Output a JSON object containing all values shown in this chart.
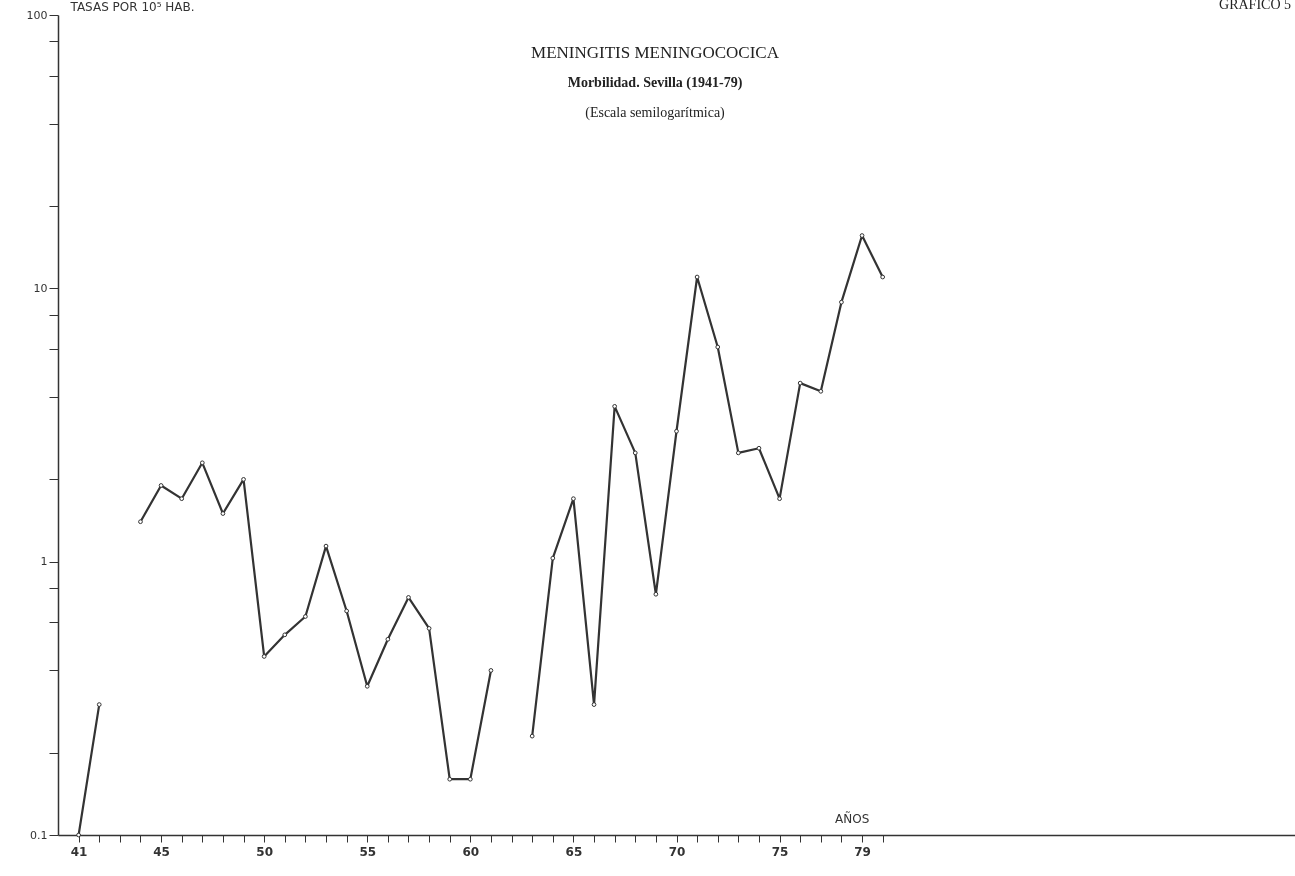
{
  "chart_data": {
    "type": "line",
    "title": "MENINGITIS MENINGOCOCICA",
    "subtitle": "Morbilidad. Sevilla (1941-79)",
    "annotations": [
      "(Escala semilogarítmica)",
      "GRAFICO 5"
    ],
    "xlabel": "AÑOS",
    "ylabel": "TASAS POR 10⁵ HAB.",
    "x": [
      41,
      42,
      43,
      44,
      45,
      46,
      47,
      48,
      49,
      50,
      51,
      52,
      53,
      54,
      55,
      56,
      57,
      58,
      59,
      60,
      61,
      62,
      63,
      64,
      65,
      66,
      67,
      68,
      69,
      70,
      71,
      72,
      73,
      74,
      75,
      76,
      77,
      78,
      79,
      80
    ],
    "series": [
      {
        "color": "#333333",
        "values": [
          0.1,
          0.3,
          null,
          1.4,
          1.9,
          1.7,
          2.3,
          1.5,
          2.0,
          0.45,
          0.54,
          0.63,
          1.14,
          0.66,
          0.35,
          0.52,
          0.74,
          0.57,
          0.16,
          0.16,
          0.4,
          null,
          0.23,
          1.03,
          1.7,
          0.3,
          3.7,
          2.5,
          0.76,
          3.0,
          11,
          6.1,
          2.5,
          2.6,
          1.7,
          4.5,
          4.2,
          8.9,
          15.6,
          11
        ]
      }
    ],
    "log": true,
    "ylim": [
      0.1,
      100
    ],
    "yticks": [
      0.1,
      {
        "value": 0.2,
        "label": null
      },
      {
        "value": 0.4,
        "label": null
      },
      {
        "value": 0.6,
        "label": null
      },
      {
        "value": 0.8,
        "label": null
      },
      1,
      {
        "value": 2,
        "label": null
      },
      {
        "value": 4,
        "label": null
      },
      {
        "value": 6,
        "label": null
      },
      {
        "value": 8,
        "label": null
      },
      10,
      {
        "value": 20,
        "label": null
      },
      {
        "value": 40,
        "label": null
      },
      {
        "value": 60,
        "label": null
      },
      {
        "value": 80,
        "label": null
      },
      100
    ],
    "xlim": [
      40,
      100
    ],
    "xticks": [
      41,
      {
        "value": 42,
        "label": null
      },
      {
        "value": 43,
        "label": null
      },
      {
        "value": 44,
        "label": null
      },
      45,
      {
        "value": 46,
        "label": null
      },
      {
        "value": 47,
        "label": null
      },
      {
        "value": 48,
        "label": null
      },
      {
        "value": 49,
        "label": null
      },
      50,
      {
        "value": 51,
        "label": null
      },
      {
        "value": 52,
        "label": null
      },
      {
        "value": 53,
        "label": null
      },
      {
        "value": 54,
        "label": null
      },
      55,
      {
        "value": 56,
        "label": null
      },
      {
        "value": 57,
        "label": null
      },
      {
        "value": 58,
        "label": null
      },
      {
        "value": 59,
        "label": null
      },
      60,
      {
        "value": 61,
        "label": null
      },
      {
        "value": 62,
        "label": null
      },
      {
        "value": 63,
        "label": null
      },
      {
        "value": 64,
        "label": null
      },
      65,
      {
        "value": 66,
        "label": null
      },
      {
        "value": 67,
        "label": null
      },
      {
        "value": 68,
        "label": null
      },
      {
        "value": 69,
        "label": null
      },
      70,
      {
        "value": 71,
        "label": null
      },
      {
        "value": 72,
        "label": null
      },
      {
        "value": 73,
        "label": null
      },
      {
        "value": 74,
        "label": null
      },
      75,
      {
        "value": 76,
        "label": null
      },
      {
        "value": 77,
        "label": null
      },
      {
        "value": 78,
        "label": null
      },
      79,
      {
        "value": 80,
        "label": null
      }
    ],
    "grid": false,
    "marker": "circle",
    "line_style": "solid"
  }
}
